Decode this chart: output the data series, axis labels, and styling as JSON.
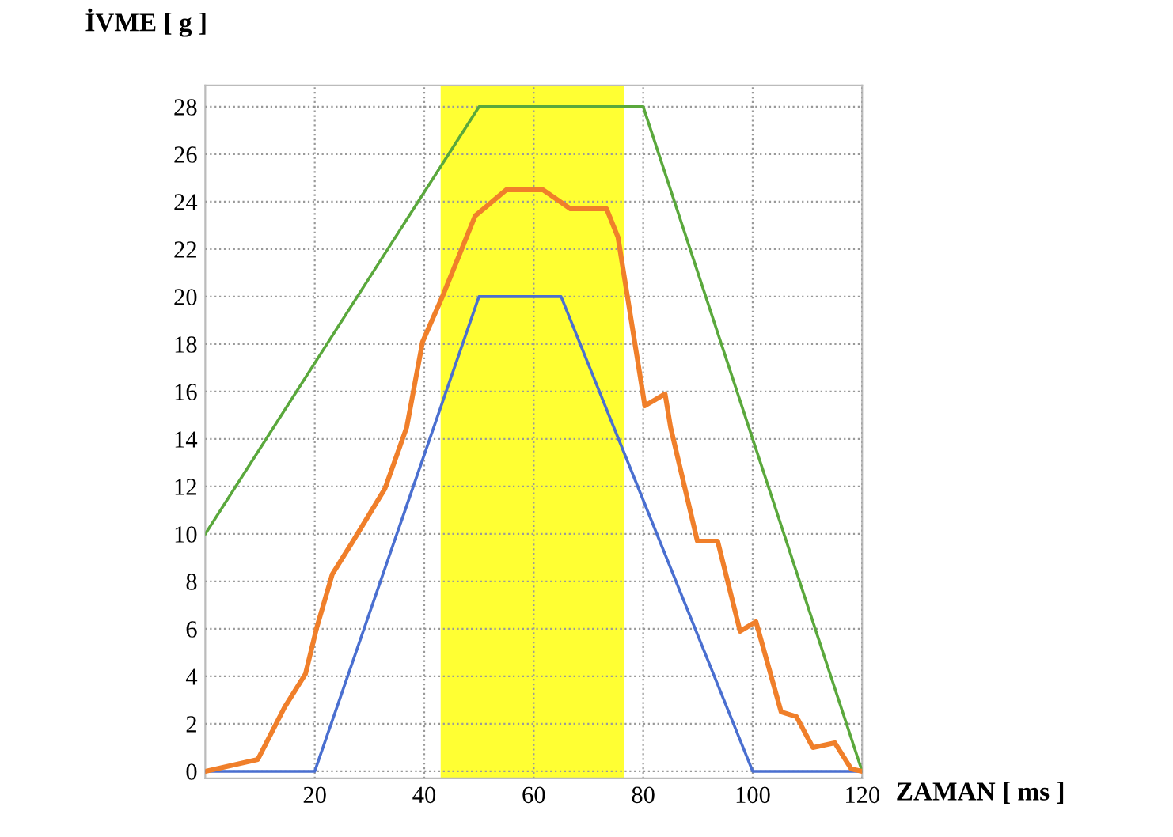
{
  "chart_data": {
    "type": "line",
    "xlabel": "ZAMAN [ ms ]",
    "ylabel": "İVME [ g ]",
    "xlim": [
      0,
      120
    ],
    "ylim": [
      -0.3,
      28.9
    ],
    "xticks": [
      20,
      40,
      60,
      80,
      100,
      120
    ],
    "yticks": [
      0,
      2,
      4,
      6,
      8,
      10,
      12,
      14,
      16,
      18,
      20,
      22,
      24,
      26,
      28
    ],
    "grid": true,
    "marker": "none",
    "line_style": "solid",
    "bands": [
      {
        "axis": "x",
        "from": 43,
        "to": 76.5,
        "color": "#ffff33"
      }
    ],
    "series": [
      {
        "color": "#5aa83c",
        "x": [
          0,
          50,
          80,
          120
        ],
        "values": [
          10,
          28,
          28,
          0
        ]
      },
      {
        "color": "#4a6fd0",
        "x": [
          0,
          20,
          50,
          65,
          100,
          120
        ],
        "values": [
          0,
          0,
          20,
          20,
          0,
          0
        ]
      },
      {
        "color": "#f07f2a",
        "x": [
          0,
          9.6,
          14.5,
          18.3,
          20.3,
          23.2,
          27,
          32.8,
          36.8,
          39.7,
          43.5,
          49.3,
          55,
          61.7,
          66.7,
          73.3,
          75.4,
          80.3,
          84,
          85,
          89.9,
          93.6,
          97.7,
          100.6,
          105.2,
          108,
          111,
          115,
          118,
          120
        ],
        "values": [
          0,
          0.5,
          2.7,
          4.1,
          6,
          8.3,
          9.7,
          11.9,
          14.5,
          18.1,
          20.1,
          23.4,
          24.5,
          24.5,
          23.7,
          23.7,
          22.5,
          15.4,
          15.9,
          14.5,
          9.7,
          9.7,
          5.9,
          6.3,
          2.5,
          2.3,
          1.0,
          1.2,
          0.1,
          0
        ]
      }
    ]
  }
}
